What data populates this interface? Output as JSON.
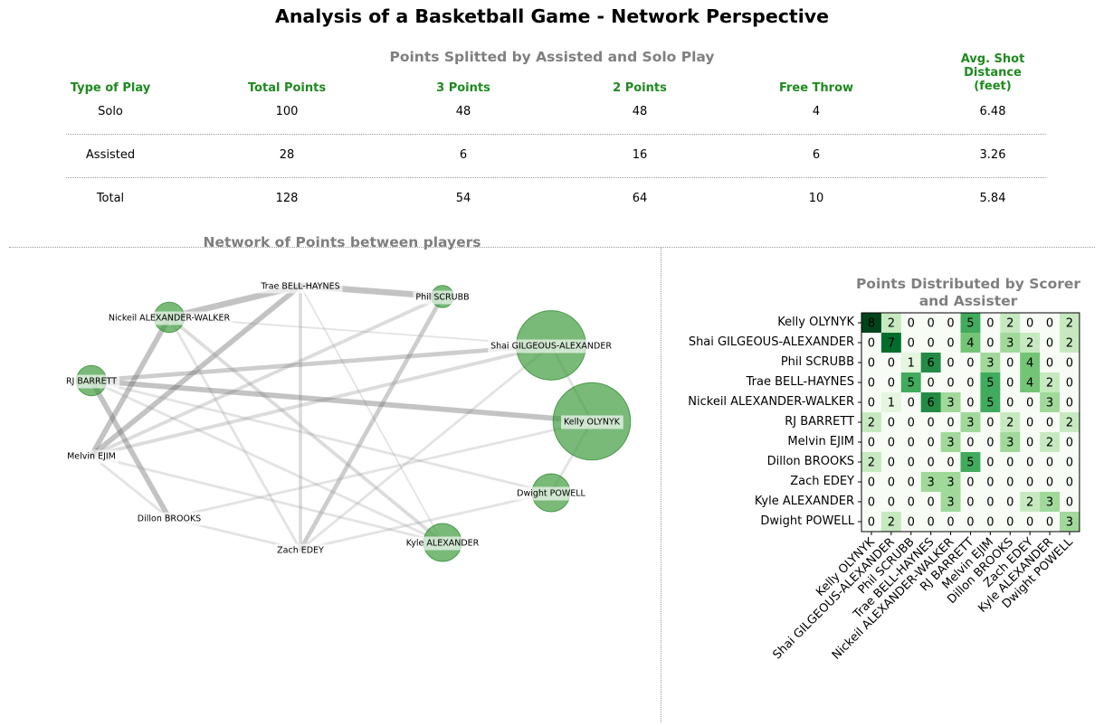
{
  "title": "Analysis of a Basketball Game - Network Perspective",
  "table": {
    "title": "Points Splitted by Assisted and Solo Play",
    "headers": [
      "Type of Play",
      "Total Points",
      "3 Points",
      "2 Points",
      "Free Throw",
      "Avg. Shot\nDistance\n(feet)"
    ],
    "rows": [
      [
        "Solo",
        "100",
        "48",
        "48",
        "4",
        "6.48"
      ],
      [
        "Assisted",
        "28",
        "6",
        "16",
        "6",
        "3.26"
      ],
      [
        "Total",
        "128",
        "54",
        "64",
        "10",
        "5.84"
      ]
    ]
  },
  "chart_data": [
    {
      "type": "network",
      "title": "Network of Points between players",
      "nodes": [
        {
          "name": "Trae BELL-HAYNES",
          "size": 0
        },
        {
          "name": "Phil SCRUBB",
          "size": 1
        },
        {
          "name": "Nickeil ALEXANDER-WALKER",
          "size": 2
        },
        {
          "name": "Shai GILGEOUS-ALEXANDER",
          "size": 7
        },
        {
          "name": "RJ BARRETT",
          "size": 2
        },
        {
          "name": "Kelly OLYNYK",
          "size": 8
        },
        {
          "name": "Melvin EJIM",
          "size": 0
        },
        {
          "name": "Dwight POWELL",
          "size": 3
        },
        {
          "name": "Dillon BROOKS",
          "size": 0
        },
        {
          "name": "Zach EDEY",
          "size": 0
        },
        {
          "name": "Kyle ALEXANDER",
          "size": 3
        }
      ],
      "edges": [
        {
          "a": "Trae BELL-HAYNES",
          "b": "Phil SCRUBB",
          "w": 6
        },
        {
          "a": "Trae BELL-HAYNES",
          "b": "Nickeil ALEXANDER-WALKER",
          "w": 6
        },
        {
          "a": "Trae BELL-HAYNES",
          "b": "Zach EDEY",
          "w": 3
        },
        {
          "a": "Trae BELL-HAYNES",
          "b": "Melvin EJIM",
          "w": 5
        },
        {
          "a": "Trae BELL-HAYNES",
          "b": "Kyle ALEXANDER",
          "w": 1
        },
        {
          "a": "Phil SCRUBB",
          "b": "Melvin EJIM",
          "w": 3
        },
        {
          "a": "Phil SCRUBB",
          "b": "Zach EDEY",
          "w": 4
        },
        {
          "a": "Nickeil ALEXANDER-WALKER",
          "b": "Melvin EJIM",
          "w": 5
        },
        {
          "a": "Nickeil ALEXANDER-WALKER",
          "b": "Kyle ALEXANDER",
          "w": 3
        },
        {
          "a": "Nickeil ALEXANDER-WALKER",
          "b": "Zach EDEY",
          "w": 2
        },
        {
          "a": "Nickeil ALEXANDER-WALKER",
          "b": "Shai GILGEOUS-ALEXANDER",
          "w": 1
        },
        {
          "a": "Shai GILGEOUS-ALEXANDER",
          "b": "RJ BARRETT",
          "w": 4
        },
        {
          "a": "Shai GILGEOUS-ALEXANDER",
          "b": "Melvin EJIM",
          "w": 3
        },
        {
          "a": "Shai GILGEOUS-ALEXANDER",
          "b": "Zach EDEY",
          "w": 2
        },
        {
          "a": "Kelly OLYNYK",
          "b": "RJ BARRETT",
          "w": 5
        },
        {
          "a": "Kelly OLYNYK",
          "b": "Dwight POWELL",
          "w": 2
        },
        {
          "a": "Kelly OLYNYK",
          "b": "Dillon BROOKS",
          "w": 2
        },
        {
          "a": "Kelly OLYNYK",
          "b": "Shai GILGEOUS-ALEXANDER",
          "w": 2
        },
        {
          "a": "RJ BARRETT",
          "b": "Dillon BROOKS",
          "w": 5
        },
        {
          "a": "RJ BARRETT",
          "b": "Kyle ALEXANDER",
          "w": 2
        },
        {
          "a": "RJ BARRETT",
          "b": "Dwight POWELL",
          "w": 2
        },
        {
          "a": "Melvin EJIM",
          "b": "Kyle ALEXANDER",
          "w": 2
        },
        {
          "a": "Melvin EJIM",
          "b": "Dillon BROOKS",
          "w": 2
        },
        {
          "a": "Dwight POWELL",
          "b": "Zach EDEY",
          "w": 2
        },
        {
          "a": "Dillon BROOKS",
          "b": "Zach EDEY",
          "w": 2
        }
      ]
    },
    {
      "type": "heatmap",
      "title": "Points Distributed by Scorer\nand Assister",
      "rows": [
        "Kelly OLYNYK",
        "Shai GILGEOUS-ALEXANDER",
        "Phil SCRUBB",
        "Trae BELL-HAYNES",
        "Nickeil ALEXANDER-WALKER",
        "RJ BARRETT",
        "Melvin EJIM",
        "Dillon BROOKS",
        "Zach EDEY",
        "Kyle ALEXANDER",
        "Dwight POWELL"
      ],
      "cols": [
        "Kelly OLYNYK",
        "Shai GILGEOUS-ALEXANDER",
        "Phil SCRUBB",
        "Trae BELL-HAYNES",
        "Nickeil ALEXANDER-WALKER",
        "RJ BARRETT",
        "Melvin EJIM",
        "Dillon BROOKS",
        "Zach EDEY",
        "Kyle ALEXANDER",
        "Dwight POWELL"
      ],
      "values": [
        [
          8,
          2,
          0,
          0,
          0,
          5,
          0,
          2,
          0,
          0,
          2
        ],
        [
          0,
          7,
          0,
          0,
          0,
          4,
          0,
          3,
          2,
          0,
          2
        ],
        [
          0,
          0,
          1,
          6,
          0,
          0,
          3,
          0,
          4,
          0,
          0
        ],
        [
          0,
          0,
          5,
          0,
          0,
          0,
          5,
          0,
          4,
          2,
          0
        ],
        [
          0,
          1,
          0,
          6,
          3,
          0,
          5,
          0,
          0,
          3,
          0
        ],
        [
          2,
          0,
          0,
          0,
          0,
          3,
          0,
          2,
          0,
          0,
          2
        ],
        [
          0,
          0,
          0,
          0,
          3,
          0,
          0,
          3,
          0,
          2,
          0
        ],
        [
          2,
          0,
          0,
          0,
          0,
          5,
          0,
          0,
          0,
          0,
          0
        ],
        [
          0,
          0,
          0,
          3,
          3,
          0,
          0,
          0,
          0,
          0,
          0
        ],
        [
          0,
          0,
          0,
          0,
          3,
          0,
          0,
          0,
          2,
          3,
          0
        ],
        [
          0,
          2,
          0,
          0,
          0,
          0,
          0,
          0,
          0,
          0,
          3
        ]
      ],
      "vmin": 0,
      "vmax": 8,
      "colormap": "Greens"
    }
  ]
}
